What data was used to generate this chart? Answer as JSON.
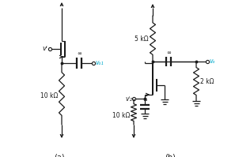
{
  "bg_color": "#ffffff",
  "fig_width": 2.97,
  "fig_height": 1.99,
  "dpi": 100,
  "label_a": "(a)",
  "label_b": "(b)",
  "vi_label": "vᴵ",
  "vo1_label": "vₒ₁",
  "vo2_label": "vₒ",
  "vi2_label": "vᴵ₂",
  "res_10k_a": "10 kΩ",
  "res_5k": "5 kΩ",
  "res_10k_b": "10 kΩ",
  "res_2k": "2 kΩ",
  "inf_label": "∞",
  "line_color": "#1a1a1a",
  "cyan_color": "#00aacc",
  "linewidth": 0.9
}
